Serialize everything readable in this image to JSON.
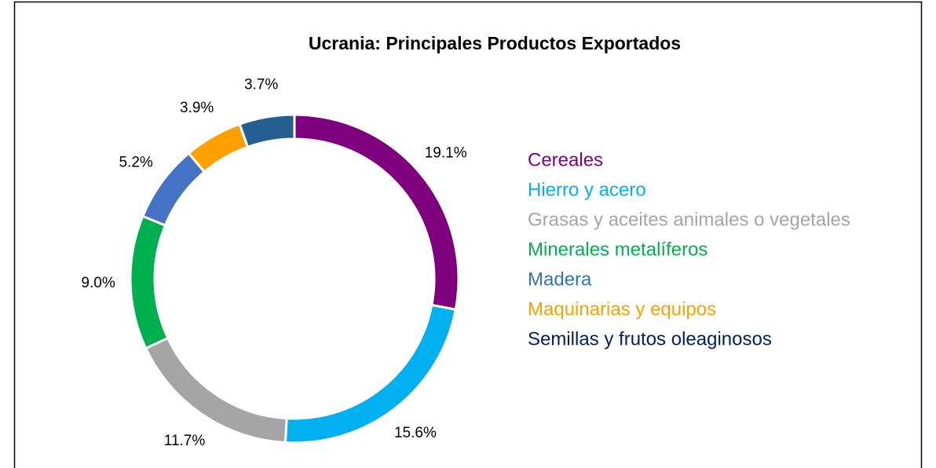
{
  "chart_data": {
    "type": "donut",
    "title": "Ucrania: Principales Productos Exportados",
    "categories": [
      "Cereales",
      "Hierro y acero",
      "Grasas y aceites animales o vegetales",
      "Minerales metalíferos",
      "Madera",
      "Maquinarias y equipos",
      "Semillas y frutos oleaginosos"
    ],
    "values": [
      19.1,
      15.6,
      11.7,
      9.0,
      5.2,
      3.9,
      3.7
    ],
    "value_labels": [
      "19.1%",
      "15.6%",
      "11.7%",
      "9.0%",
      "5.2%",
      "3.9%",
      "3.7%"
    ],
    "colors": [
      "#7f007f",
      "#00b0f0",
      "#a5a5a5",
      "#00b050",
      "#4472c4",
      "#ffa000",
      "#255e91"
    ],
    "legend_colors": [
      "#7f007f",
      "#00b0f0",
      "#a5a5a5",
      "#00b050",
      "#2e75b6",
      "#ff9e00",
      "#002060"
    ],
    "legend": "right"
  }
}
